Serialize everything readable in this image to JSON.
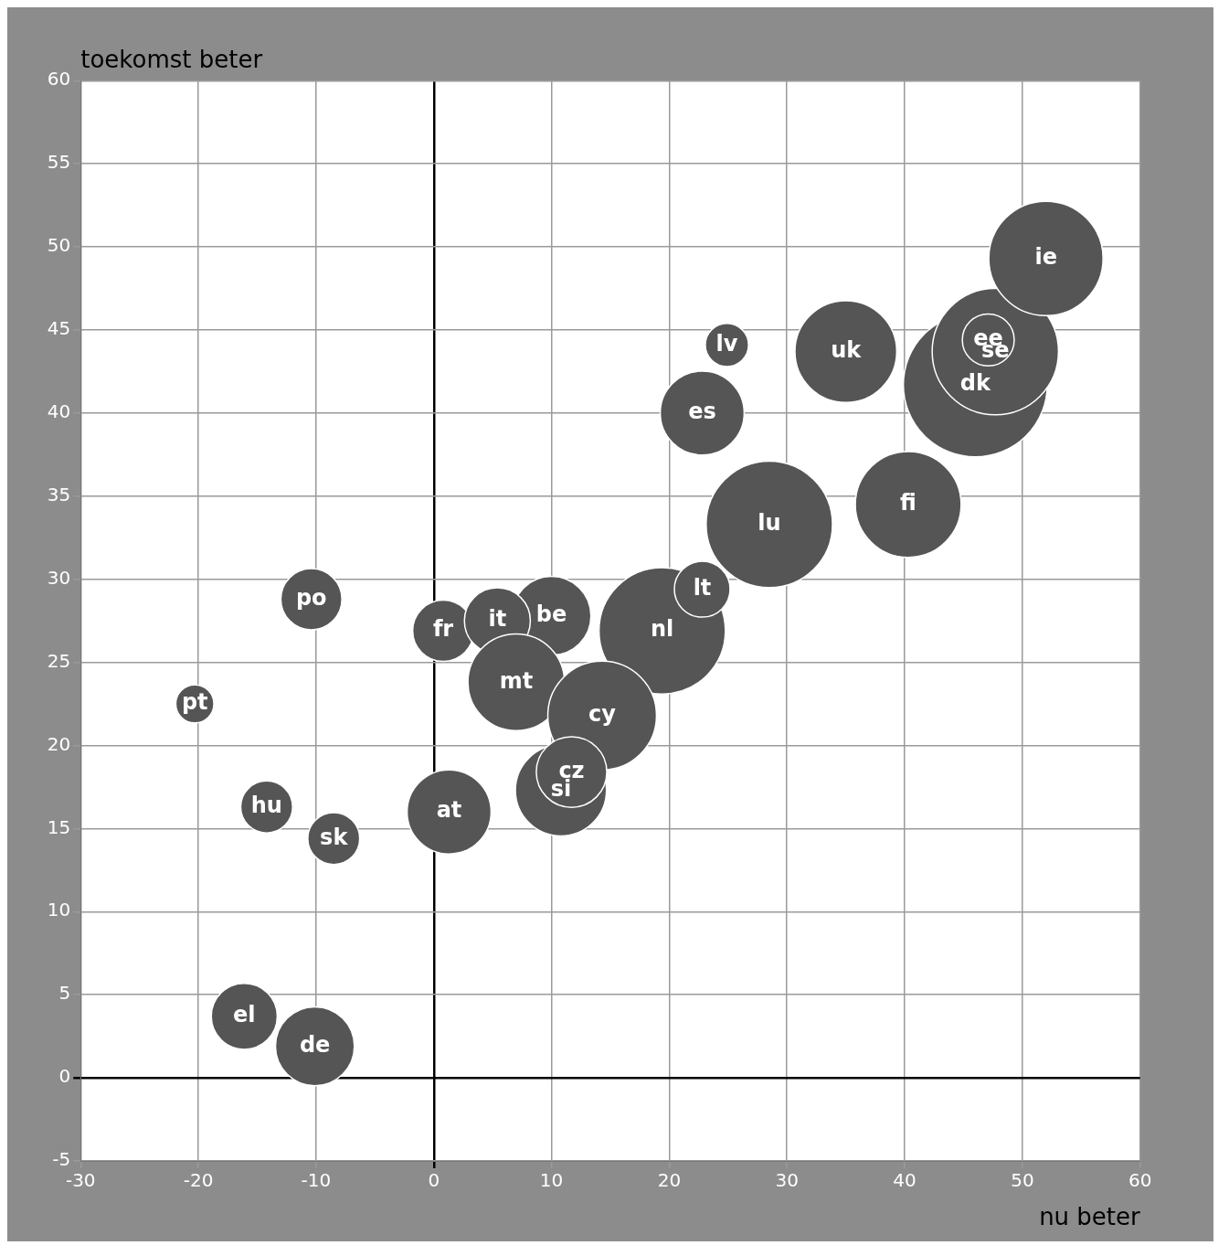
{
  "chart_data": {
    "type": "bubble",
    "xlabel": "nu beter",
    "ylabel": "toekomst beter",
    "xlim": [
      -30,
      60
    ],
    "ylim": [
      -5,
      60
    ],
    "xticks": [
      -30,
      -20,
      -10,
      0,
      10,
      20,
      30,
      40,
      50,
      60
    ],
    "yticks": [
      -5,
      0,
      5,
      10,
      15,
      20,
      25,
      30,
      35,
      40,
      45,
      50,
      55,
      60
    ],
    "grid": true,
    "legend": false,
    "series": [
      {
        "name": "dk",
        "color": "#555555",
        "x": [
          46
        ],
        "values": [
          41.7
        ],
        "sizes": [
          1
        ]
      },
      {
        "name": "se",
        "color": "#555555",
        "x": [
          47.7
        ],
        "values": [
          43.7
        ],
        "sizes": [
          0.77
        ]
      },
      {
        "name": "ee",
        "color": "#555555",
        "x": [
          47.1
        ],
        "values": [
          44.4
        ],
        "sizes": [
          0.13
        ]
      },
      {
        "name": "ie",
        "color": "#555555",
        "x": [
          52
        ],
        "values": [
          49.3
        ],
        "sizes": [
          0.63
        ]
      },
      {
        "name": "uk",
        "color": "#555555",
        "x": [
          35
        ],
        "values": [
          43.7
        ],
        "sizes": [
          0.5
        ]
      },
      {
        "name": "lv",
        "color": "#555555",
        "x": [
          24.9
        ],
        "values": [
          44.1
        ],
        "sizes": [
          0.09
        ]
      },
      {
        "name": "es",
        "color": "#555555",
        "x": [
          22.8
        ],
        "values": [
          40
        ],
        "sizes": [
          0.34
        ]
      },
      {
        "name": "lu",
        "color": "#555555",
        "x": [
          28.5
        ],
        "values": [
          33.3
        ],
        "sizes": [
          0.77
        ]
      },
      {
        "name": "fi",
        "color": "#555555",
        "x": [
          40.3
        ],
        "values": [
          34.5
        ],
        "sizes": [
          0.54
        ]
      },
      {
        "name": "nl",
        "color": "#555555",
        "x": [
          19.4
        ],
        "values": [
          26.9
        ],
        "sizes": [
          0.77
        ]
      },
      {
        "name": "lt",
        "color": "#555555",
        "x": [
          22.8
        ],
        "values": [
          29.4
        ],
        "sizes": [
          0.15
        ]
      },
      {
        "name": "be",
        "color": "#555555",
        "x": [
          10
        ],
        "values": [
          27.8
        ],
        "sizes": [
          0.3
        ]
      },
      {
        "name": "fr",
        "color": "#555555",
        "x": [
          0.8
        ],
        "values": [
          26.9
        ],
        "sizes": [
          0.18
        ]
      },
      {
        "name": "it",
        "color": "#555555",
        "x": [
          5.4
        ],
        "values": [
          27.5
        ],
        "sizes": [
          0.21
        ]
      },
      {
        "name": "mt",
        "color": "#555555",
        "x": [
          7
        ],
        "values": [
          23.8
        ],
        "sizes": [
          0.45
        ]
      },
      {
        "name": "cy",
        "color": "#555555",
        "x": [
          14.3
        ],
        "values": [
          21.8
        ],
        "sizes": [
          0.57
        ]
      },
      {
        "name": "si",
        "color": "#555555",
        "x": [
          10.8
        ],
        "values": [
          17.3
        ],
        "sizes": [
          0.4
        ]
      },
      {
        "name": "cz",
        "color": "#555555",
        "x": [
          11.7
        ],
        "values": [
          18.4
        ],
        "sizes": [
          0.24
        ]
      },
      {
        "name": "at",
        "color": "#555555",
        "x": [
          1.3
        ],
        "values": [
          16
        ],
        "sizes": [
          0.34
        ]
      },
      {
        "name": "po",
        "color": "#555555",
        "x": [
          -10.4
        ],
        "values": [
          28.8
        ],
        "sizes": [
          0.18
        ]
      },
      {
        "name": "pt",
        "color": "#555555",
        "x": [
          -20.3
        ],
        "values": [
          22.5
        ],
        "sizes": [
          0.07
        ]
      },
      {
        "name": "hu",
        "color": "#555555",
        "x": [
          -14.2
        ],
        "values": [
          16.3
        ],
        "sizes": [
          0.13
        ]
      },
      {
        "name": "sk",
        "color": "#555555",
        "x": [
          -8.5
        ],
        "values": [
          14.4
        ],
        "sizes": [
          0.13
        ]
      },
      {
        "name": "el",
        "color": "#555555",
        "x": [
          -16.1
        ],
        "values": [
          3.7
        ],
        "sizes": [
          0.21
        ]
      },
      {
        "name": "de",
        "color": "#555555",
        "x": [
          -10.1
        ],
        "values": [
          1.9
        ],
        "sizes": [
          0.3
        ]
      }
    ]
  }
}
